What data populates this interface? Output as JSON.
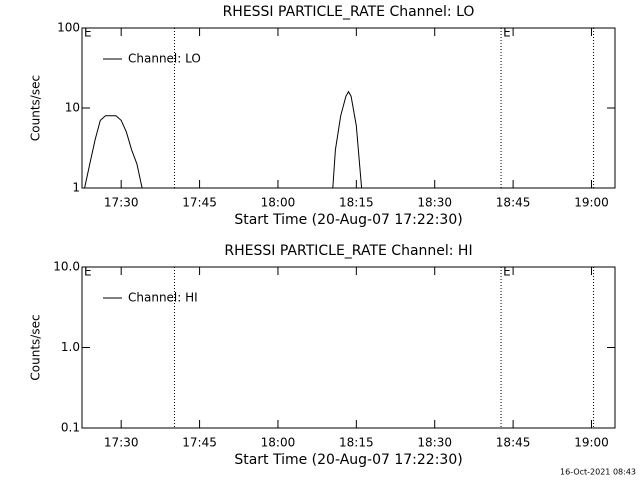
{
  "chart_data": [
    {
      "type": "line",
      "title": "RHESSI PARTICLE_RATE Channel: LO",
      "xlabel": "Start Time (20-Aug-07 17:22:30)",
      "ylabel": "Counts/sec",
      "log_y": true,
      "xlim": [
        "17:22:30",
        "19:04:30"
      ],
      "xticks": [
        "17:30",
        "17:45",
        "18:00",
        "18:15",
        "18:30",
        "18:45",
        "19:00"
      ],
      "ylim": [
        1,
        100
      ],
      "yticks": [
        1,
        10,
        100
      ],
      "x": [
        "17:23:00",
        "17:24:00",
        "17:25:00",
        "17:26:00",
        "17:27:00",
        "17:29:00",
        "17:30:00",
        "17:31:00",
        "17:32:00",
        "17:33:00",
        "17:34:00",
        "17:40:00",
        "18:10:30",
        "18:11:00",
        "18:12:00",
        "18:13:00",
        "18:13:30",
        "18:14:00",
        "18:15:00",
        "18:16:00"
      ],
      "series": [
        {
          "name": "Channel: LO",
          "color": "#000000",
          "values": [
            1,
            2,
            4,
            7,
            8,
            8,
            7,
            5,
            3,
            2,
            1,
            null,
            1,
            3,
            8,
            14,
            16,
            14,
            6,
            1
          ]
        }
      ],
      "markers": [
        "17:40:12",
        "18:42:42",
        "19:00:24"
      ],
      "annotations": [
        {
          "x": "17:22:30",
          "text": "E"
        },
        {
          "x": "18:42:42",
          "text": "E"
        }
      ]
    },
    {
      "type": "line",
      "title": "RHESSI PARTICLE_RATE Channel: HI",
      "xlabel": "Start Time (20-Aug-07 17:22:30)",
      "ylabel": "Counts/sec",
      "log_y": true,
      "xlim": [
        "17:22:30",
        "19:04:30"
      ],
      "xticks": [
        "17:30",
        "17:45",
        "18:00",
        "18:15",
        "18:30",
        "18:45",
        "19:00"
      ],
      "ylim": [
        0.1,
        10
      ],
      "yticks": [
        0.1,
        {
          "value": 1,
          "label": "1.0"
        },
        {
          "value": 10,
          "label": "10.0"
        }
      ],
      "x": [],
      "series": [
        {
          "name": "Channel: HI",
          "color": "#000000",
          "values": []
        }
      ],
      "markers": [
        "17:40:12",
        "18:42:42",
        "19:00:24"
      ],
      "annotations": [
        {
          "x": "17:22:30",
          "text": "E"
        },
        {
          "x": "18:42:42",
          "text": "E"
        }
      ]
    }
  ],
  "footer": "16-Oct-2021 08:43"
}
